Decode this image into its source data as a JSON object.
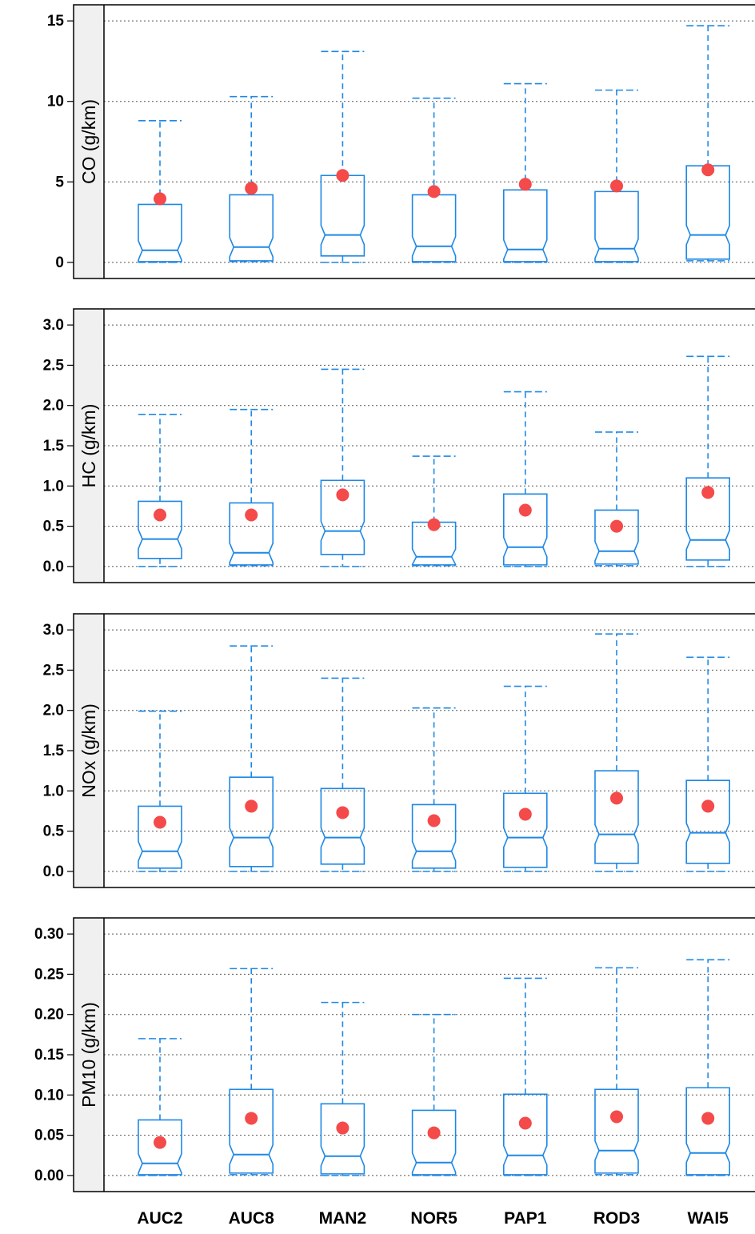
{
  "chart_data": {
    "type": "box",
    "categories": [
      "AUC2",
      "AUC8",
      "MAN2",
      "NOR5",
      "PAP1",
      "ROD3",
      "WAI5"
    ],
    "colors": {
      "box": "#1e88e5",
      "mean": "#f44a4a",
      "strip": "#f0f0f0",
      "grid": "#555555"
    },
    "grid": "horizontal dotted",
    "panels": [
      {
        "ylabel": "CO (g/km)",
        "ylim": [
          -1,
          16
        ],
        "yticks": [
          0,
          5,
          10,
          15
        ],
        "ytick_labels": [
          "0",
          "5",
          "10",
          "15"
        ],
        "series": [
          {
            "category": "AUC2",
            "whisker_low": 0.0,
            "q1": 0.05,
            "median": 0.75,
            "q3": 3.6,
            "whisker_high": 8.8,
            "mean": 3.95
          },
          {
            "category": "AUC8",
            "whisker_low": 0.05,
            "q1": 0.1,
            "median": 0.95,
            "q3": 4.2,
            "whisker_high": 10.3,
            "mean": 4.6
          },
          {
            "category": "MAN2",
            "whisker_low": 0.0,
            "q1": 0.4,
            "median": 1.7,
            "q3": 5.4,
            "whisker_high": 13.1,
            "mean": 5.4
          },
          {
            "category": "NOR5",
            "whisker_low": 0.0,
            "q1": 0.05,
            "median": 1.0,
            "q3": 4.2,
            "whisker_high": 10.2,
            "mean": 4.4
          },
          {
            "category": "PAP1",
            "whisker_low": 0.0,
            "q1": 0.05,
            "median": 0.8,
            "q3": 4.5,
            "whisker_high": 11.1,
            "mean": 4.85
          },
          {
            "category": "ROD3",
            "whisker_low": 0.0,
            "q1": 0.05,
            "median": 0.85,
            "q3": 4.4,
            "whisker_high": 10.7,
            "mean": 4.75
          },
          {
            "category": "WAI5",
            "whisker_low": 0.1,
            "q1": 0.2,
            "median": 1.7,
            "q3": 6.0,
            "whisker_high": 14.7,
            "mean": 5.75
          }
        ]
      },
      {
        "ylabel": "HC (g/km)",
        "ylim": [
          -0.2,
          3.2
        ],
        "yticks": [
          0.0,
          0.5,
          1.0,
          1.5,
          2.0,
          2.5,
          3.0
        ],
        "ytick_labels": [
          "0.0",
          "0.5",
          "1.0",
          "1.5",
          "2.0",
          "2.5",
          "3.0"
        ],
        "series": [
          {
            "category": "AUC2",
            "whisker_low": 0.0,
            "q1": 0.1,
            "median": 0.34,
            "q3": 0.81,
            "whisker_high": 1.89,
            "mean": 0.64
          },
          {
            "category": "AUC8",
            "whisker_low": 0.01,
            "q1": 0.02,
            "median": 0.17,
            "q3": 0.79,
            "whisker_high": 1.95,
            "mean": 0.64
          },
          {
            "category": "MAN2",
            "whisker_low": 0.0,
            "q1": 0.15,
            "median": 0.44,
            "q3": 1.07,
            "whisker_high": 2.45,
            "mean": 0.89
          },
          {
            "category": "NOR5",
            "whisker_low": 0.01,
            "q1": 0.02,
            "median": 0.12,
            "q3": 0.55,
            "whisker_high": 1.37,
            "mean": 0.52
          },
          {
            "category": "PAP1",
            "whisker_low": 0.0,
            "q1": 0.02,
            "median": 0.24,
            "q3": 0.9,
            "whisker_high": 2.17,
            "mean": 0.7
          },
          {
            "category": "ROD3",
            "whisker_low": 0.01,
            "q1": 0.03,
            "median": 0.19,
            "q3": 0.7,
            "whisker_high": 1.67,
            "mean": 0.5
          },
          {
            "category": "WAI5",
            "whisker_low": 0.0,
            "q1": 0.08,
            "median": 0.33,
            "q3": 1.1,
            "whisker_high": 2.61,
            "mean": 0.92
          }
        ]
      },
      {
        "ylabel": "NOx (g/km)",
        "ylim": [
          -0.2,
          3.2
        ],
        "yticks": [
          0.0,
          0.5,
          1.0,
          1.5,
          2.0,
          2.5,
          3.0
        ],
        "ytick_labels": [
          "0.0",
          "0.5",
          "1.0",
          "1.5",
          "2.0",
          "2.5",
          "3.0"
        ],
        "series": [
          {
            "category": "AUC2",
            "whisker_low": 0.0,
            "q1": 0.04,
            "median": 0.25,
            "q3": 0.81,
            "whisker_high": 1.99,
            "mean": 0.61
          },
          {
            "category": "AUC8",
            "whisker_low": 0.0,
            "q1": 0.06,
            "median": 0.42,
            "q3": 1.17,
            "whisker_high": 2.8,
            "mean": 0.81
          },
          {
            "category": "MAN2",
            "whisker_low": 0.0,
            "q1": 0.09,
            "median": 0.42,
            "q3": 1.03,
            "whisker_high": 2.4,
            "mean": 0.73
          },
          {
            "category": "NOR5",
            "whisker_low": 0.0,
            "q1": 0.04,
            "median": 0.25,
            "q3": 0.83,
            "whisker_high": 2.03,
            "mean": 0.63
          },
          {
            "category": "PAP1",
            "whisker_low": 0.0,
            "q1": 0.05,
            "median": 0.42,
            "q3": 0.97,
            "whisker_high": 2.3,
            "mean": 0.71
          },
          {
            "category": "ROD3",
            "whisker_low": 0.0,
            "q1": 0.1,
            "median": 0.46,
            "q3": 1.25,
            "whisker_high": 2.95,
            "mean": 0.91
          },
          {
            "category": "WAI5",
            "whisker_low": 0.0,
            "q1": 0.1,
            "median": 0.48,
            "q3": 1.13,
            "whisker_high": 2.66,
            "mean": 0.81
          }
        ]
      },
      {
        "ylabel": "PM10 (g/km)",
        "ylim": [
          -0.02,
          0.32
        ],
        "yticks": [
          0.0,
          0.05,
          0.1,
          0.15,
          0.2,
          0.25,
          0.3
        ],
        "ytick_labels": [
          "0.00",
          "0.05",
          "0.10",
          "0.15",
          "0.20",
          "0.25",
          "0.30"
        ],
        "series": [
          {
            "category": "AUC2",
            "whisker_low": 0.0,
            "q1": 0.001,
            "median": 0.015,
            "q3": 0.069,
            "whisker_high": 0.17,
            "mean": 0.041
          },
          {
            "category": "AUC8",
            "whisker_low": 0.001,
            "q1": 0.003,
            "median": 0.026,
            "q3": 0.107,
            "whisker_high": 0.257,
            "mean": 0.071
          },
          {
            "category": "MAN2",
            "whisker_low": 0.0,
            "q1": 0.002,
            "median": 0.024,
            "q3": 0.089,
            "whisker_high": 0.215,
            "mean": 0.059
          },
          {
            "category": "NOR5",
            "whisker_low": 0.0,
            "q1": 0.001,
            "median": 0.016,
            "q3": 0.081,
            "whisker_high": 0.2,
            "mean": 0.053
          },
          {
            "category": "PAP1",
            "whisker_low": 0.0,
            "q1": 0.001,
            "median": 0.025,
            "q3": 0.101,
            "whisker_high": 0.245,
            "mean": 0.065
          },
          {
            "category": "ROD3",
            "whisker_low": 0.001,
            "q1": 0.003,
            "median": 0.031,
            "q3": 0.107,
            "whisker_high": 0.258,
            "mean": 0.073
          },
          {
            "category": "WAI5",
            "whisker_low": 0.0,
            "q1": 0.001,
            "median": 0.028,
            "q3": 0.109,
            "whisker_high": 0.268,
            "mean": 0.071
          }
        ]
      }
    ]
  }
}
